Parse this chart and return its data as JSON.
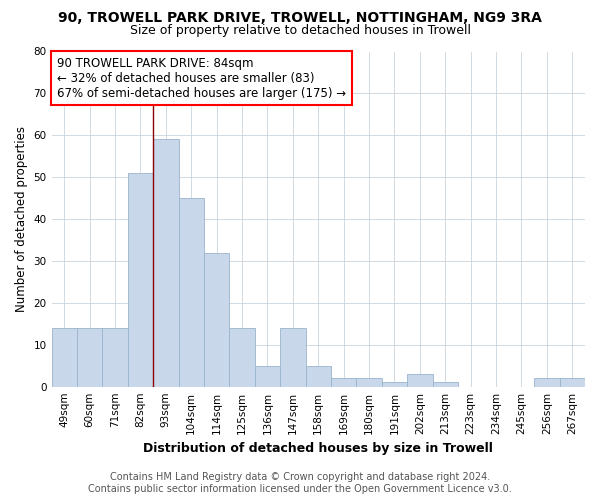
{
  "title": "90, TROWELL PARK DRIVE, TROWELL, NOTTINGHAM, NG9 3RA",
  "subtitle": "Size of property relative to detached houses in Trowell",
  "xlabel": "Distribution of detached houses by size in Trowell",
  "ylabel": "Number of detached properties",
  "footer_line1": "Contains HM Land Registry data © Crown copyright and database right 2024.",
  "footer_line2": "Contains public sector information licensed under the Open Government Licence v3.0.",
  "categories": [
    "49sqm",
    "60sqm",
    "71sqm",
    "82sqm",
    "93sqm",
    "104sqm",
    "114sqm",
    "125sqm",
    "136sqm",
    "147sqm",
    "158sqm",
    "169sqm",
    "180sqm",
    "191sqm",
    "202sqm",
    "213sqm",
    "223sqm",
    "234sqm",
    "245sqm",
    "256sqm",
    "267sqm"
  ],
  "values": [
    14,
    14,
    14,
    51,
    59,
    45,
    32,
    14,
    5,
    14,
    5,
    2,
    2,
    1,
    3,
    1,
    0,
    0,
    0,
    2,
    2
  ],
  "bar_color": "#c8d8ea",
  "bar_edge_color": "#9ab4cc",
  "red_line_x": 3.5,
  "red_line_label": "90 TROWELL PARK DRIVE: 84sqm",
  "annotation_line2": "← 32% of detached houses are smaller (83)",
  "annotation_line3": "67% of semi-detached houses are larger (175) →",
  "annotation_box_color": "white",
  "annotation_border_color": "red",
  "ylim": [
    0,
    80
  ],
  "yticks": [
    0,
    10,
    20,
    30,
    40,
    50,
    60,
    70,
    80
  ],
  "grid_color": "#c8d4de",
  "title_fontsize": 10,
  "subtitle_fontsize": 9,
  "xlabel_fontsize": 9,
  "ylabel_fontsize": 8.5,
  "tick_fontsize": 7.5,
  "annotation_fontsize": 8.5,
  "footer_fontsize": 7
}
